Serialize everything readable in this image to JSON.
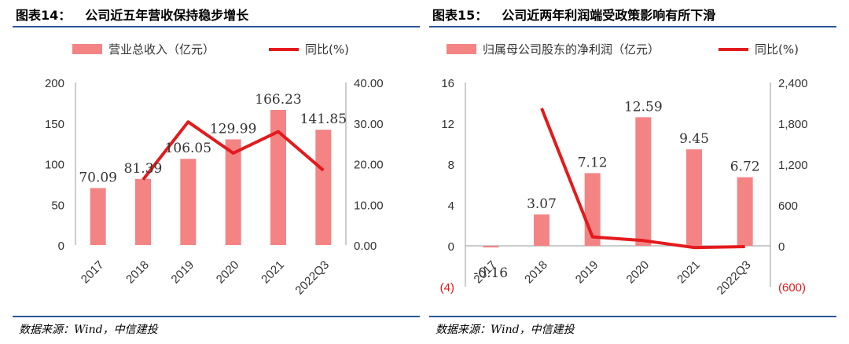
{
  "colors": {
    "bar": "#f48484",
    "line": "#e31a1c",
    "rule": "#2e5596"
  },
  "left": {
    "title_label": "图表14：",
    "title_text": "公司近五年营收保持稳步增长",
    "source": "数据来源：Wind，中信建投",
    "legend_bar": "营业总收入（亿元）",
    "legend_line": "同比(%)",
    "chart_data": {
      "type": "bar",
      "categories": [
        "2017",
        "2018",
        "2019",
        "2020",
        "2021",
        "2022Q3"
      ],
      "series": [
        {
          "name": "营业总收入（亿元）",
          "values": [
            70.09,
            81.39,
            106.05,
            129.99,
            166.23,
            141.85
          ],
          "labels": [
            "70.09",
            "81.39",
            "106.05",
            "129.99",
            "166.23",
            "141.85"
          ]
        },
        {
          "name": "同比(%)",
          "type": "line",
          "axis": "right",
          "values": [
            null,
            16.1,
            30.3,
            22.6,
            27.9,
            18.4
          ]
        }
      ],
      "ylim": [
        0,
        200
      ],
      "y_ticks": [
        "0",
        "50",
        "100",
        "150",
        "200"
      ],
      "y2lim": [
        0,
        40
      ],
      "y2_ticks": [
        "0.00",
        "10.00",
        "20.00",
        "30.00",
        "40.00"
      ],
      "legend": "top"
    }
  },
  "right": {
    "title_label": "图表15：",
    "title_text": "公司近两年利润端受政策影响有所下滑",
    "source": "数据来源：Wind，中信建投",
    "legend_bar": "归属母公司股东的净利润（亿元）",
    "legend_line": "同比(%)",
    "chart_data": {
      "type": "bar",
      "categories": [
        "2017",
        "2018",
        "2019",
        "2020",
        "2021",
        "2022Q3"
      ],
      "series": [
        {
          "name": "归属母公司股东的净利润（亿元）",
          "values": [
            -0.16,
            3.07,
            7.12,
            12.59,
            9.45,
            6.72
          ],
          "labels": [
            "-0.16",
            "3.07",
            "7.12",
            "12.59",
            "9.45",
            "6.72"
          ]
        },
        {
          "name": "同比(%)",
          "type": "line",
          "axis": "right",
          "values": [
            null,
            2020,
            132,
            77,
            -25,
            -12
          ]
        }
      ],
      "ylim": [
        -4,
        16
      ],
      "y_ticks": [
        "(4)",
        "0",
        "4",
        "8",
        "12",
        "16"
      ],
      "y2lim": [
        -600,
        2400
      ],
      "y2_ticks": [
        "(600)",
        "0",
        "600",
        "1,200",
        "1,800",
        "2,400"
      ],
      "legend": "top"
    }
  }
}
